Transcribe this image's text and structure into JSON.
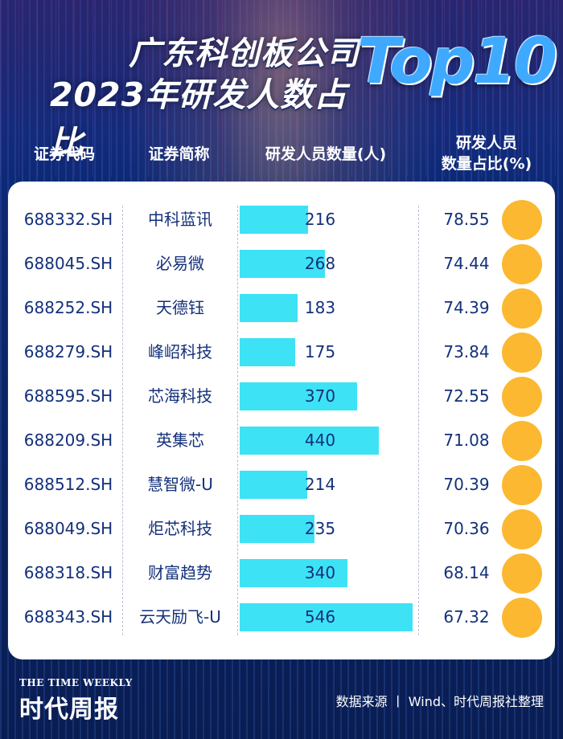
{
  "title": {
    "line1": "广东科创板公司",
    "line2": "2023年研发人数占比",
    "badge": "Top10"
  },
  "headers": {
    "code": "证券代码",
    "name": "证券简称",
    "count": "研发人员数量(人)",
    "ratio_line1": "研发人员",
    "ratio_line2": "数量占比(%)"
  },
  "chart_data": {
    "type": "table",
    "columns": [
      "证券代码",
      "证券简称",
      "研发人员数量(人)",
      "研发人员数量占比(%)"
    ],
    "rows": [
      {
        "code": "688332.SH",
        "name": "中科蓝讯",
        "count": 216,
        "ratio": "78.55"
      },
      {
        "code": "688045.SH",
        "name": "必易微",
        "count": 268,
        "ratio": "74.44"
      },
      {
        "code": "688252.SH",
        "name": "天德钰",
        "count": 183,
        "ratio": "74.39"
      },
      {
        "code": "688279.SH",
        "name": "峰岹科技",
        "count": 175,
        "ratio": "73.84"
      },
      {
        "code": "688595.SH",
        "name": "芯海科技",
        "count": 370,
        "ratio": "72.55"
      },
      {
        "code": "688209.SH",
        "name": "英集芯",
        "count": 440,
        "ratio": "71.08"
      },
      {
        "code": "688512.SH",
        "name": "慧智微-U",
        "count": 214,
        "ratio": "70.39"
      },
      {
        "code": "688049.SH",
        "name": "炬芯科技",
        "count": 235,
        "ratio": "70.36"
      },
      {
        "code": "688318.SH",
        "name": "财富趋势",
        "count": 340,
        "ratio": "68.14"
      },
      {
        "code": "688343.SH",
        "name": "云天励飞-U",
        "count": 546,
        "ratio": "67.32"
      }
    ],
    "count_max": 546
  },
  "colors": {
    "bar": "#3de2f5",
    "dot": "#fbb830",
    "text": "#13307a"
  },
  "footer": {
    "brand_en": "THE TIME WEEKLY",
    "brand_cn": "时代周报",
    "source": "数据来源 丨 Wind、时代周报社整理"
  }
}
